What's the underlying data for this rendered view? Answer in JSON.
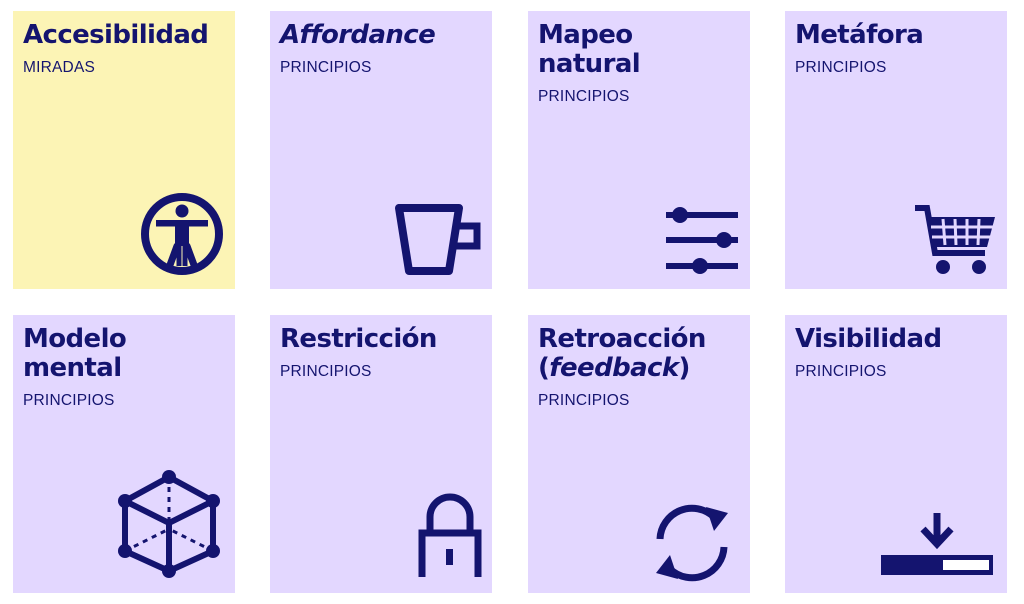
{
  "cards": [
    {
      "title": "Accesibilidad",
      "category": "MIRADAS",
      "icon": "vitruvian-man-icon",
      "highlighted": true
    },
    {
      "title": "Affordance",
      "category": "PRINCIPIOS",
      "icon": "cup-icon"
    },
    {
      "title": "Mapeo natural",
      "category": "PRINCIPIOS",
      "icon": "sliders-icon"
    },
    {
      "title": "Metáfora",
      "category": "PRINCIPIOS",
      "icon": "shopping-cart-icon"
    },
    {
      "title": "Modelo mental",
      "category": "PRINCIPIOS",
      "icon": "cube-icon"
    },
    {
      "title": "Restricción",
      "category": "PRINCIPIOS",
      "icon": "padlock-icon"
    },
    {
      "title_line1": "Retroacción",
      "title_open": "(",
      "title_italic": "feedback",
      "title_close": ")",
      "category": "PRINCIPIOS",
      "icon": "refresh-icon"
    },
    {
      "title": "Visibilidad",
      "category": "PRINCIPIOS",
      "icon": "download-progress-icon"
    }
  ],
  "colors": {
    "card_background": "#e3d7ff",
    "highlight_background": "#fcf4b5",
    "text": "#14146f"
  }
}
